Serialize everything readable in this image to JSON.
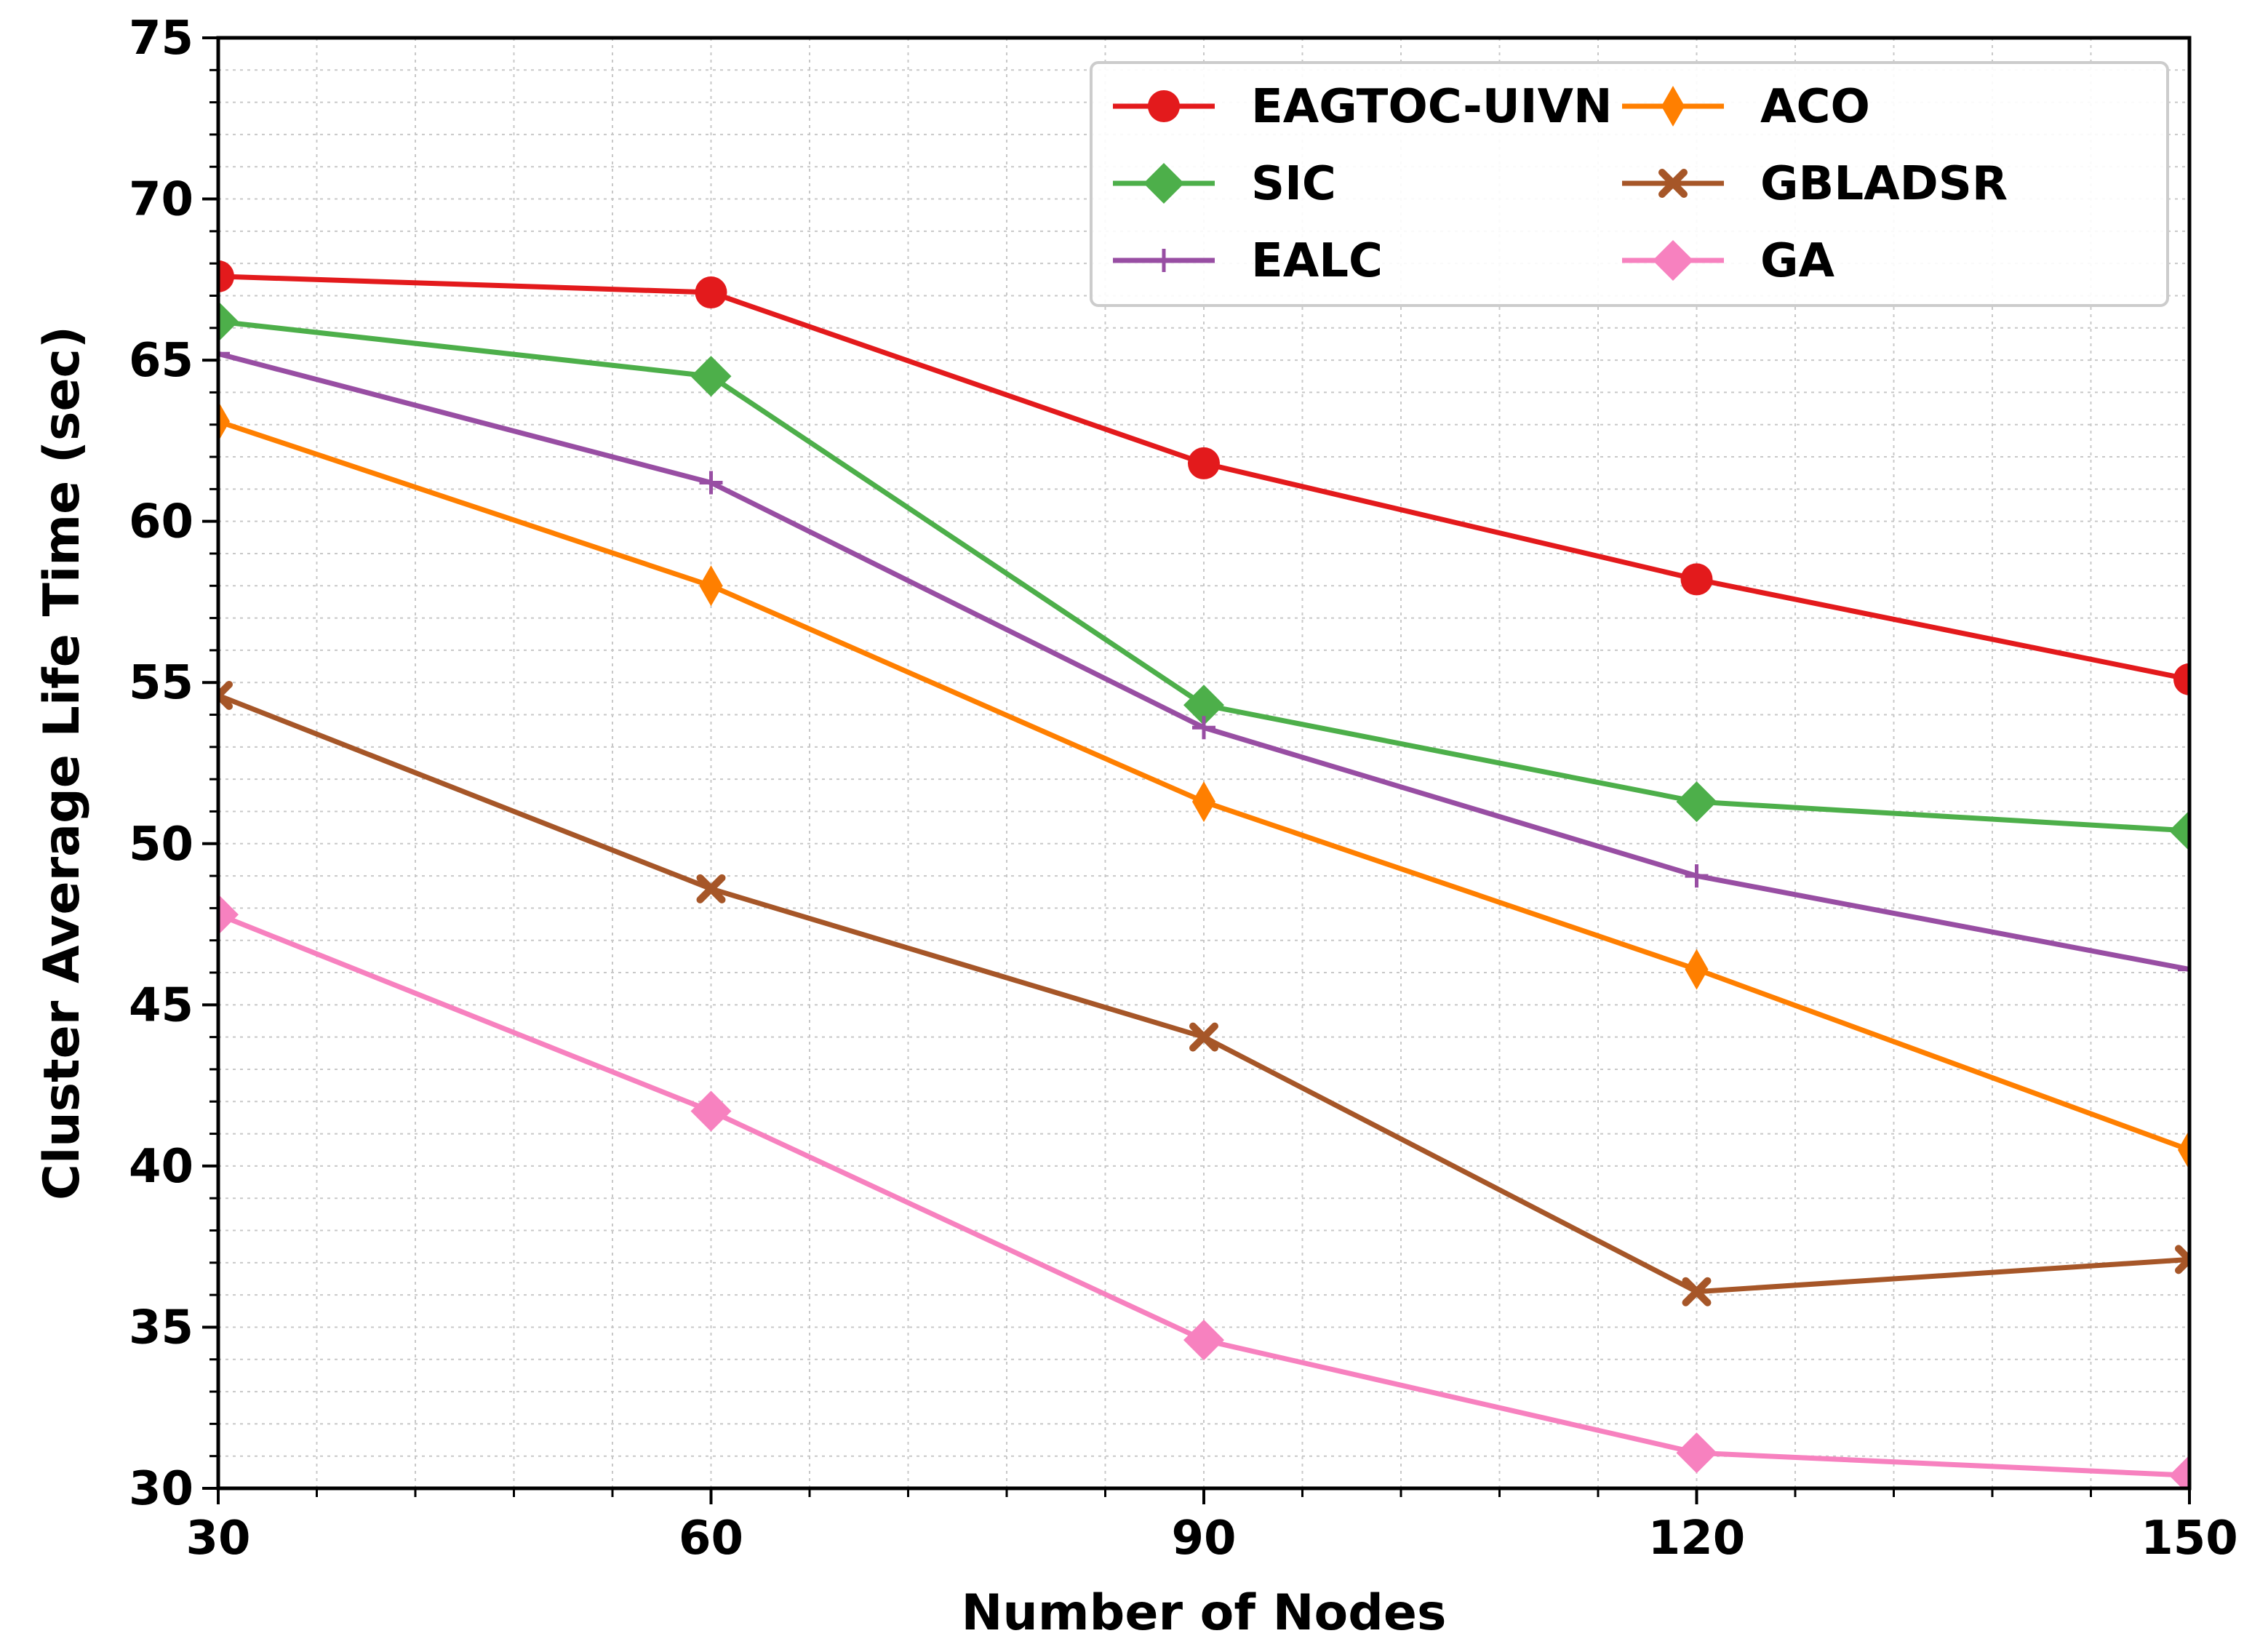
{
  "chart_data": {
    "type": "line",
    "title": "",
    "xlabel": "Number of Nodes",
    "ylabel": "Cluster Average Life Time (sec)",
    "xlim": [
      30,
      150
    ],
    "ylim": [
      30,
      75
    ],
    "x": [
      30,
      60,
      90,
      120,
      150
    ],
    "x_ticks": [
      30,
      60,
      90,
      120,
      150
    ],
    "y_ticks": [
      30,
      35,
      40,
      45,
      50,
      55,
      60,
      65,
      70,
      75
    ],
    "grid": true,
    "legend_position": "top-right",
    "series": [
      {
        "name": "EAGTOC-UIVN",
        "color": "#e31a1c",
        "marker": "circle",
        "values": [
          67.6,
          67.1,
          61.8,
          58.2,
          55.1
        ]
      },
      {
        "name": "SIC",
        "color": "#4daf4a",
        "marker": "diamond",
        "values": [
          66.2,
          64.5,
          54.3,
          51.3,
          50.4
        ]
      },
      {
        "name": "EALC",
        "color": "#984ea3",
        "marker": "plus",
        "values": [
          65.2,
          61.2,
          53.6,
          49.0,
          46.1
        ]
      },
      {
        "name": "ACO",
        "color": "#ff7f00",
        "marker": "thin-diamond",
        "values": [
          63.1,
          58.0,
          51.3,
          46.1,
          40.5
        ]
      },
      {
        "name": "GBLADSR",
        "color": "#a65628",
        "marker": "x",
        "values": [
          54.6,
          48.6,
          44.0,
          36.1,
          37.1
        ]
      },
      {
        "name": "GA",
        "color": "#f781bf",
        "marker": "diamond",
        "values": [
          47.8,
          41.7,
          34.6,
          31.1,
          30.4
        ]
      }
    ]
  }
}
